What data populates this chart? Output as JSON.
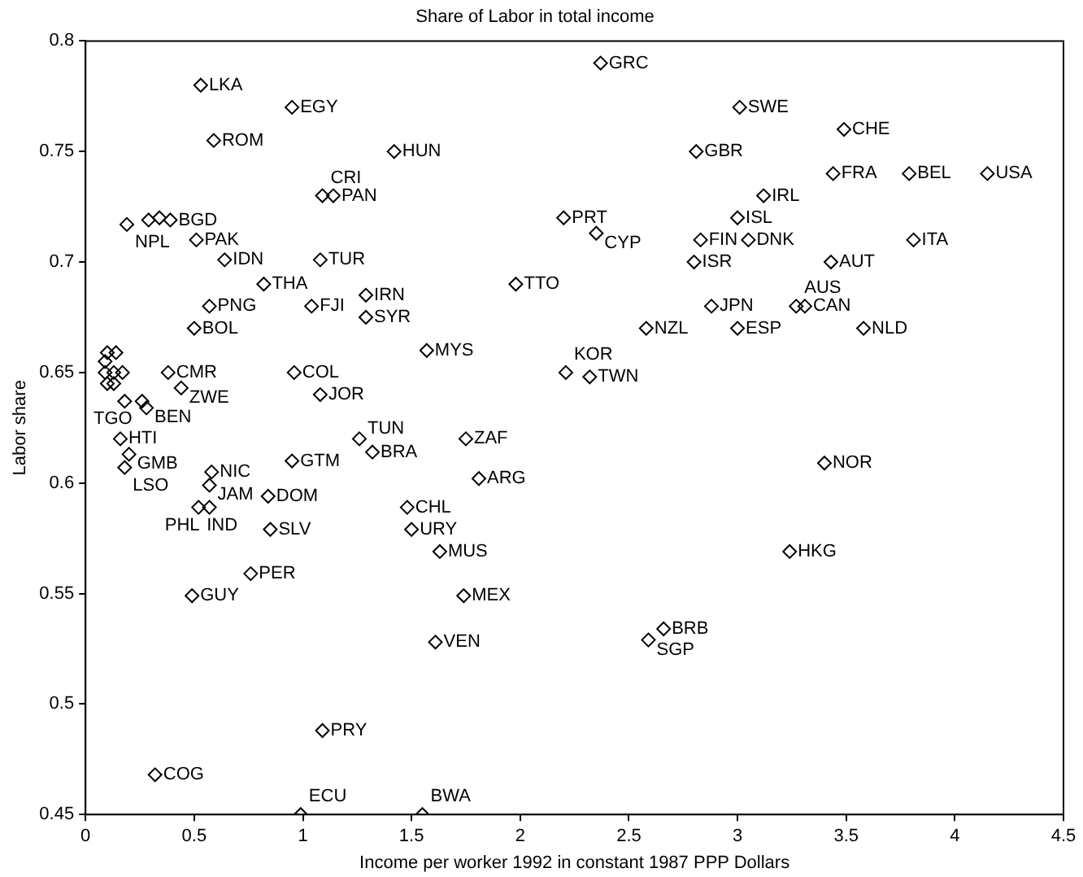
{
  "chart_data": {
    "type": "scatter",
    "title": "Share of Labor in total income",
    "xlabel": "Income per worker 1992 in constant 1987 PPP Dollars",
    "ylabel": "Labor share",
    "xlim": [
      0,
      4.5
    ],
    "xticks": [
      0,
      0.5,
      1,
      1.5,
      2,
      2.5,
      3,
      3.5,
      4,
      4.5
    ],
    "ylim": [
      0.45,
      0.8
    ],
    "yticks": [
      0.45,
      0.5,
      0.55,
      0.6,
      0.65,
      0.7,
      0.75,
      0.8
    ],
    "grid": false,
    "legend": false,
    "marker": "diamond",
    "series": [
      {
        "color": "#000000",
        "x": [
          0.53,
          0.95,
          0.59,
          1.42,
          1.09,
          1.14,
          0.19,
          0.29,
          0.34,
          0.39,
          0.51,
          0.64,
          1.08,
          0.82,
          0.57,
          1.04,
          1.29,
          1.29,
          0.5,
          1.57,
          0.96,
          1.08,
          1.98,
          2.2,
          2.37,
          3.01,
          3.49,
          2.81,
          3.44,
          3.79,
          4.15,
          3.12,
          3.0,
          2.35,
          2.83,
          3.05,
          3.81,
          2.8,
          3.43,
          2.88,
          3.0,
          2.58,
          3.27,
          3.31,
          3.58,
          2.21,
          2.32,
          3.4,
          3.24,
          2.66,
          2.59,
          0.1,
          0.14,
          0.09,
          0.09,
          0.13,
          0.38,
          0.17,
          0.1,
          0.13,
          0.44,
          0.18,
          0.26,
          0.28,
          0.16,
          0.2,
          0.18,
          0.58,
          0.57,
          0.52,
          0.57,
          0.84,
          0.85,
          0.95,
          1.26,
          1.32,
          1.75,
          1.81,
          1.48,
          1.5,
          1.63,
          1.74,
          1.61,
          0.76,
          0.49,
          1.09,
          0.32,
          0.99,
          1.55
        ],
        "values": [
          0.78,
          0.77,
          0.755,
          0.75,
          0.73,
          0.73,
          0.717,
          0.719,
          0.72,
          0.719,
          0.71,
          0.701,
          0.701,
          0.69,
          0.68,
          0.68,
          0.685,
          0.675,
          0.67,
          0.66,
          0.65,
          0.64,
          0.69,
          0.72,
          0.79,
          0.77,
          0.76,
          0.75,
          0.74,
          0.74,
          0.74,
          0.73,
          0.72,
          0.713,
          0.71,
          0.71,
          0.71,
          0.7,
          0.7,
          0.68,
          0.67,
          0.67,
          0.68,
          0.68,
          0.67,
          0.65,
          0.648,
          0.609,
          0.569,
          0.534,
          0.529,
          0.659,
          0.659,
          0.655,
          0.65,
          0.65,
          0.65,
          0.65,
          0.645,
          0.645,
          0.643,
          0.637,
          0.637,
          0.634,
          0.62,
          0.613,
          0.607,
          0.605,
          0.599,
          0.589,
          0.589,
          0.594,
          0.579,
          0.61,
          0.62,
          0.614,
          0.62,
          0.602,
          0.589,
          0.579,
          0.569,
          0.549,
          0.528,
          0.559,
          0.549,
          0.488,
          0.468,
          0.45,
          0.45
        ],
        "value_labels": [
          "LKA",
          "EGY",
          "ROM",
          "HUN",
          "CRI",
          "PAN",
          "NPL",
          null,
          null,
          "BGD",
          "PAK",
          "IDN",
          "TUR",
          "THA",
          "PNG",
          "FJI",
          "IRN",
          "SYR",
          "BOL",
          "MYS",
          "COL",
          "JOR",
          "TTO",
          "PRT",
          "GRC",
          "SWE",
          "CHE",
          "GBR",
          "FRA",
          "BEL",
          "USA",
          "IRL",
          "ISL",
          "CYP",
          "FIN",
          "DNK",
          "ITA",
          "ISR",
          "AUT",
          "JPN",
          "ESP",
          "NZL",
          "AUS",
          "CAN",
          "NLD",
          "KOR",
          "TWN",
          "NOR",
          "HKG",
          "BRB",
          "SGP",
          null,
          null,
          null,
          null,
          null,
          "CMR",
          null,
          null,
          null,
          "ZWE",
          null,
          "TGO",
          "BEN",
          "HTI",
          "GMB",
          "LSO",
          "NIC",
          "JAM",
          "IND",
          "PHL",
          "DOM",
          "SLV",
          "GTM",
          "TUN",
          "BRA",
          "ZAF",
          "ARG",
          "CHL",
          "URY",
          "MUS",
          "MEX",
          "VEN",
          "PER",
          "GUY",
          "PRY",
          "COG",
          "ECU",
          "BWA"
        ]
      }
    ]
  }
}
